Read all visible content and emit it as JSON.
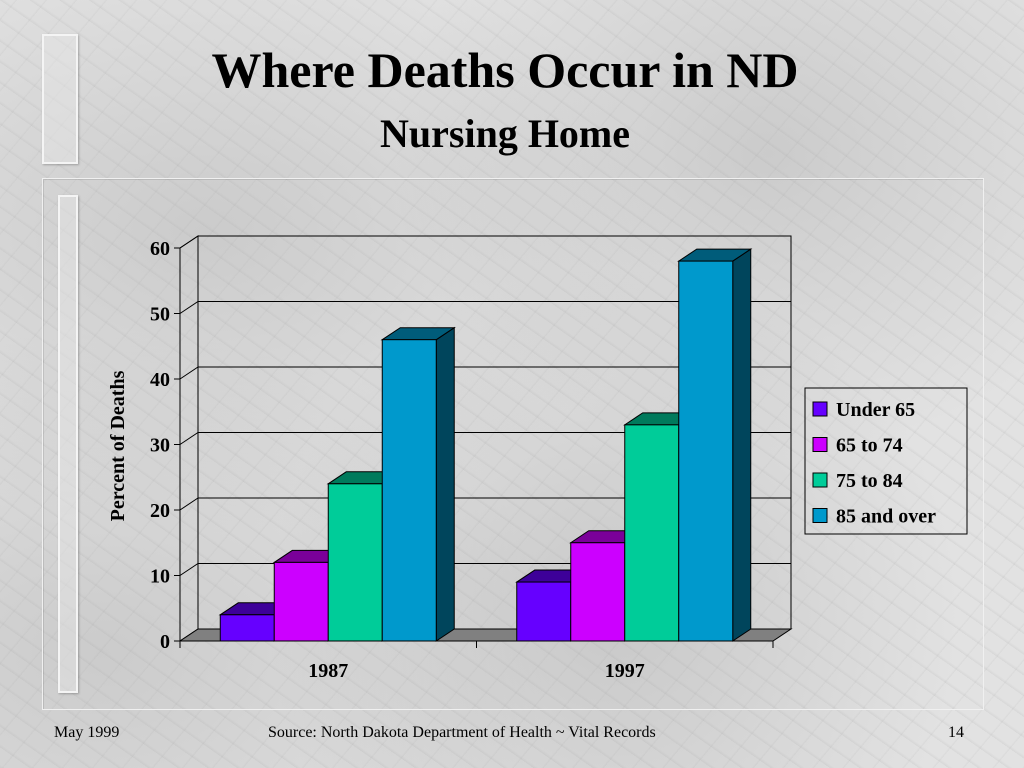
{
  "slide": {
    "title": "Where Deaths Occur in ND",
    "subtitle": "Nursing Home"
  },
  "footer": {
    "date": "May 1999",
    "source": "Source:  North Dakota Department of Health ~ Vital Records",
    "page": "14"
  },
  "chart_data": {
    "type": "bar",
    "three_d": true,
    "categories": [
      "1987",
      "1997"
    ],
    "ylabel": "Percent of Deaths",
    "xlabel": "",
    "ylim": [
      0,
      60
    ],
    "yticks": [
      "0",
      "10",
      "20",
      "30",
      "40",
      "50",
      "60"
    ],
    "grid": true,
    "legend_position": "right",
    "series": [
      {
        "name": "Under 65",
        "values": [
          4,
          9
        ],
        "color": "#6600ff"
      },
      {
        "name": "65 to 74",
        "values": [
          12,
          15
        ],
        "color": "#cc00ff"
      },
      {
        "name": "75 to 84",
        "values": [
          24,
          33
        ],
        "color": "#00cc99"
      },
      {
        "name": "85 and over",
        "values": [
          46,
          58
        ],
        "color": "#0099cc"
      }
    ]
  }
}
